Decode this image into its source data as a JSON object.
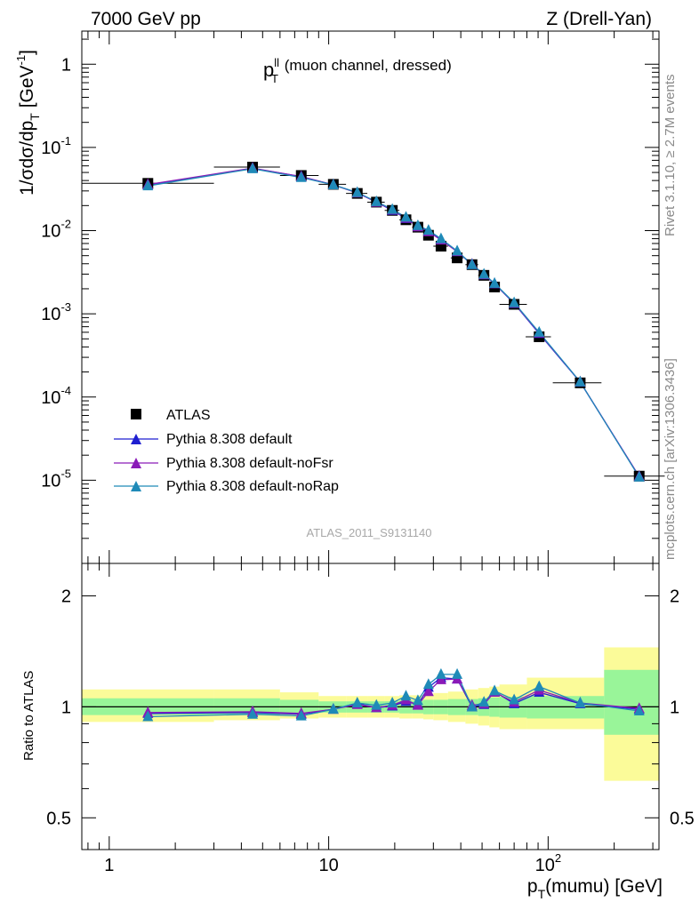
{
  "header": {
    "left": "7000 GeV pp",
    "right": "Z (Drell-Yan)"
  },
  "side_text": {
    "rivet": "Rivet 3.1.10, ≥ 2.7M events",
    "mcplots": "mcplots.cern.ch [arXiv:1306.3436]"
  },
  "watermark": "ATLAS_2011_S9131140",
  "colors": {
    "data": "#000000",
    "default": "#1f1fd0",
    "noFsr": "#8a1ab8",
    "noRap": "#1f8ab8",
    "band_inner": "#99f599",
    "band_outer": "#fbfb99"
  },
  "chart_data": [
    {
      "type": "scatter",
      "title_main": "p",
      "title_sup": "ll",
      "title_sub": "T",
      "title_rest": " (muon channel, dressed)",
      "ylabel": "1/σdσ/dp",
      "ylabel_sub": "T",
      "ylabel_unit_pre": " [GeV",
      "ylabel_unit_sup": "-1",
      "ylabel_unit_post": "]",
      "xscale": "log",
      "yscale": "log",
      "xlim": [
        0.75,
        320
      ],
      "ylim": [
        1e-06,
        2.5
      ],
      "y_ticks": [
        {
          "v": 1,
          "base": "1",
          "exp": ""
        },
        {
          "v": 0.1,
          "base": "10",
          "exp": "-1"
        },
        {
          "v": 0.01,
          "base": "10",
          "exp": "-2"
        },
        {
          "v": 0.001,
          "base": "10",
          "exp": "-3"
        },
        {
          "v": 0.0001,
          "base": "10",
          "exp": "-4"
        },
        {
          "v": 1e-05,
          "base": "10",
          "exp": "-5"
        }
      ],
      "legend": [
        "ATLAS",
        "Pythia 8.308 default",
        "Pythia 8.308 default-noFsr",
        "Pythia 8.308 default-noRap"
      ],
      "legend_position": "bottom-left",
      "x": [
        1.5,
        4.5,
        7.5,
        10.5,
        13.5,
        16.5,
        19.5,
        22.5,
        25.5,
        28.5,
        32.5,
        38.5,
        45,
        51,
        57,
        70,
        91,
        140,
        260
      ],
      "xerr_lo": [
        0.75,
        1.5,
        1.5,
        1.5,
        1.5,
        1.5,
        1.5,
        1.5,
        1.5,
        1.5,
        2.5,
        2.5,
        3,
        3,
        3,
        10,
        12,
        35,
        80
      ],
      "xerr_hi": [
        1.5,
        1.5,
        1.5,
        1.5,
        1.5,
        1.5,
        1.5,
        1.5,
        1.5,
        1.5,
        2.5,
        2.5,
        3,
        3,
        3,
        10,
        12,
        35,
        80
      ],
      "series": [
        {
          "name": "ATLAS",
          "values": [
            0.037,
            0.058,
            0.046,
            0.036,
            0.028,
            0.022,
            0.0175,
            0.0135,
            0.011,
            0.0088,
            0.0065,
            0.0047,
            0.0039,
            0.0029,
            0.0021,
            0.0013,
            0.00053,
            0.000148,
            1.12e-05
          ]
        },
        {
          "name": "Pythia 8.308 default",
          "values": [
            0.0355,
            0.056,
            0.0445,
            0.0355,
            0.0285,
            0.022,
            0.0175,
            0.014,
            0.0112,
            0.0099,
            0.0078,
            0.0056,
            0.0039,
            0.00295,
            0.0023,
            0.00133,
            0.00058,
            0.000151,
            1.11e-05
          ]
        },
        {
          "name": "Pythia 8.308 default-noFsr",
          "values": [
            0.0358,
            0.0565,
            0.0445,
            0.0355,
            0.0284,
            0.0219,
            0.0177,
            0.0141,
            0.0111,
            0.0097,
            0.0077,
            0.0056,
            0.00395,
            0.00295,
            0.0023,
            0.00134,
            0.00059,
            0.000152,
            1.11e-05
          ]
        },
        {
          "name": "Pythia 8.308 default-noRap",
          "values": [
            0.0345,
            0.0555,
            0.0435,
            0.0355,
            0.0287,
            0.0223,
            0.018,
            0.0145,
            0.0115,
            0.0101,
            0.008,
            0.0057,
            0.0039,
            0.003,
            0.00232,
            0.00136,
            0.0006,
            0.000152,
            1.09e-05
          ]
        }
      ]
    },
    {
      "type": "line",
      "ylabel": "Ratio to ATLAS",
      "xlabel": "p",
      "xlabel_sub": "T",
      "xlabel_rest": "(mumu) [GeV]",
      "xscale": "log",
      "yscale": "log",
      "xlim": [
        0.75,
        320
      ],
      "ylim": [
        0.41,
        2.45
      ],
      "y_ticks": [
        "0.5",
        "1",
        "2"
      ],
      "x_ticks": [
        {
          "v": 1,
          "label": "1"
        },
        {
          "v": 10,
          "label": "10"
        },
        {
          "v": 100,
          "label": "10",
          "sup": "2"
        }
      ],
      "band_edges": [
        0.75,
        3,
        6,
        9,
        12,
        15,
        18,
        21,
        24,
        27,
        30,
        35,
        42,
        48,
        54,
        60,
        80,
        180,
        320
      ],
      "band_inner_lo": [
        0.95,
        0.95,
        0.96,
        0.965,
        0.965,
        0.965,
        0.965,
        0.96,
        0.96,
        0.955,
        0.955,
        0.95,
        0.95,
        0.945,
        0.94,
        0.935,
        0.93,
        0.84
      ],
      "band_inner_hi": [
        1.055,
        1.055,
        1.045,
        1.035,
        1.035,
        1.035,
        1.035,
        1.04,
        1.04,
        1.045,
        1.045,
        1.05,
        1.05,
        1.055,
        1.06,
        1.065,
        1.07,
        1.26
      ],
      "band_outer_lo": [
        0.91,
        0.92,
        0.93,
        0.935,
        0.935,
        0.935,
        0.935,
        0.93,
        0.93,
        0.925,
        0.92,
        0.91,
        0.9,
        0.89,
        0.88,
        0.87,
        0.87,
        0.63
      ],
      "band_outer_hi": [
        1.115,
        1.115,
        1.095,
        1.07,
        1.07,
        1.07,
        1.07,
        1.075,
        1.075,
        1.08,
        1.09,
        1.1,
        1.115,
        1.125,
        1.135,
        1.15,
        1.2,
        1.45
      ],
      "series": [
        {
          "name": "Pythia 8.308 default",
          "values": [
            0.96,
            0.965,
            0.955,
            0.985,
            1.02,
            0.995,
            1.005,
            1.035,
            1.015,
            1.13,
            1.2,
            1.19,
            1.0,
            1.015,
            1.1,
            1.02,
            1.095,
            1.02,
            0.985
          ]
        },
        {
          "name": "Pythia 8.308 default-noFsr",
          "values": [
            0.965,
            0.97,
            0.96,
            0.985,
            1.015,
            0.995,
            1.01,
            1.045,
            1.01,
            1.1,
            1.185,
            1.19,
            1.01,
            1.02,
            1.095,
            1.03,
            1.11,
            1.025,
            0.99
          ]
        },
        {
          "name": "Pythia 8.308 default-noRap",
          "values": [
            0.94,
            0.955,
            0.945,
            0.985,
            1.025,
            1.01,
            1.025,
            1.07,
            1.04,
            1.15,
            1.225,
            1.225,
            1.0,
            1.03,
            1.105,
            1.045,
            1.135,
            1.025,
            0.975
          ]
        }
      ]
    }
  ]
}
